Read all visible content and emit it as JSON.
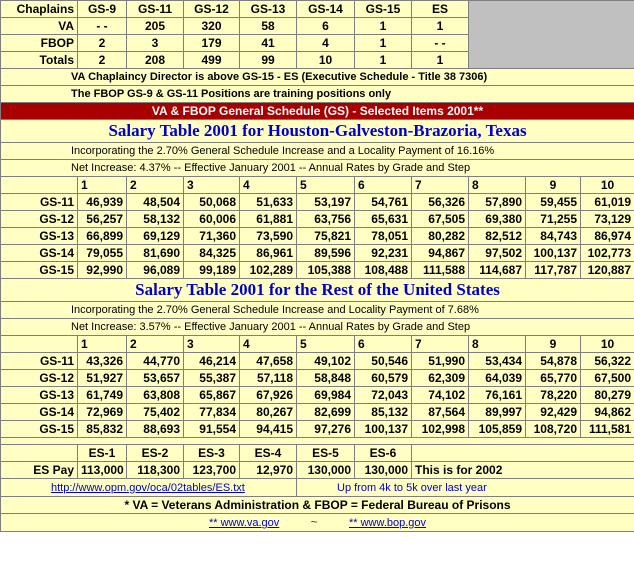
{
  "chaplains": {
    "header": [
      "Chaplains",
      "GS-9",
      "GS-11",
      "GS-12",
      "GS-13",
      "GS-14",
      "GS-15",
      "ES"
    ],
    "rows": [
      [
        "VA",
        "- -",
        "205",
        "320",
        "58",
        "6",
        "1",
        "1"
      ],
      [
        "FBOP",
        "2",
        "3",
        "179",
        "41",
        "4",
        "1",
        "- -"
      ],
      [
        "Totals",
        "2",
        "208",
        "499",
        "99",
        "10",
        "1",
        "1"
      ]
    ],
    "note1": "VA Chaplaincy Director is above GS-15 - ES (Executive Schedule - Title 38 7306)",
    "note2": "The FBOP GS-9 & GS-11 Positions are training positions only"
  },
  "banner": "VA & FBOP General Schedule (GS) - Selected Items 2001**",
  "houston": {
    "title": "Salary Table 2001 for Houston-Galveston-Brazoria, Texas",
    "line1": "Incorporating the 2.70% General Schedule Increase and a Locality Payment of 16.16%",
    "line2": "Net Increase:  4.37%  --  Effective January 2001  --  Annual Rates by Grade and Step",
    "steps": [
      "1",
      "2",
      "3",
      "4",
      "5",
      "6",
      "7",
      "8",
      "9",
      "10"
    ],
    "rows": [
      [
        "GS-11",
        "46,939",
        "48,504",
        "50,068",
        "51,633",
        "53,197",
        "54,761",
        "56,326",
        "57,890",
        "59,455",
        "61,019"
      ],
      [
        "GS-12",
        "56,257",
        "58,132",
        "60,006",
        "61,881",
        "63,756",
        "65,631",
        "67,505",
        "69,380",
        "71,255",
        "73,129"
      ],
      [
        "GS-13",
        "66,899",
        "69,129",
        "71,360",
        "73,590",
        "75,821",
        "78,051",
        "80,282",
        "82,512",
        "84,743",
        "86,974"
      ],
      [
        "GS-14",
        "79,055",
        "81,690",
        "84,325",
        "86,961",
        "89,596",
        "92,231",
        "94,867",
        "97,502",
        "100,137",
        "102,773"
      ],
      [
        "GS-15",
        "92,990",
        "96,089",
        "99,189",
        "102,289",
        "105,388",
        "108,488",
        "111,588",
        "114,687",
        "117,787",
        "120,887"
      ]
    ]
  },
  "rest": {
    "title": "Salary Table 2001 for the Rest of the United States",
    "line1": "Incorporating the 2.70% General Schedule Increase and Locality Payment of 7.68%",
    "line2": "Net Increase:  3.57% --  Effective January 2001  --  Annual Rates by Grade and Step",
    "steps": [
      "1",
      "2",
      "3",
      "4",
      "5",
      "6",
      "7",
      "8",
      "9",
      "10"
    ],
    "rows": [
      [
        "GS-11",
        "43,326",
        "44,770",
        "46,214",
        "47,658",
        "49,102",
        "50,546",
        "51,990",
        "53,434",
        "54,878",
        "56,322"
      ],
      [
        "GS-12",
        "51,927",
        "53,657",
        "55,387",
        "57,118",
        "58,848",
        "60,579",
        "62,309",
        "64,039",
        "65,770",
        "67,500"
      ],
      [
        "GS-13",
        "61,749",
        "63,808",
        "65,867",
        "67,926",
        "69,984",
        "72,043",
        "74,102",
        "76,161",
        "78,220",
        "80,279"
      ],
      [
        "GS-14",
        "72,969",
        "75,402",
        "77,834",
        "80,267",
        "82,699",
        "85,132",
        "87,564",
        "89,997",
        "92,429",
        "94,862"
      ],
      [
        "GS-15",
        "85,832",
        "88,693",
        "91,554",
        "94,415",
        "97,276",
        "100,137",
        "102,998",
        "105,859",
        "108,720",
        "111,581"
      ]
    ]
  },
  "es": {
    "header": [
      "ES-1",
      "ES-2",
      "ES-3",
      "ES-4",
      "ES-5",
      "ES-6"
    ],
    "label": "ES Pay",
    "values": [
      "113,000",
      "118,300",
      "123,700",
      "12,970",
      "130,000",
      "130,000"
    ],
    "note": "This is for 2002",
    "link": "http://www.opm.gov/oca/02tables/ES.txt",
    "link_note": "Up from 4k to 5k over last year"
  },
  "footer": {
    "legend": "* VA = Veterans Administration & FBOP = Federal Bureau of Prisons",
    "va_link": "** www.va.gov",
    "tilde": "~",
    "bop_link": "** www.bop.gov"
  }
}
